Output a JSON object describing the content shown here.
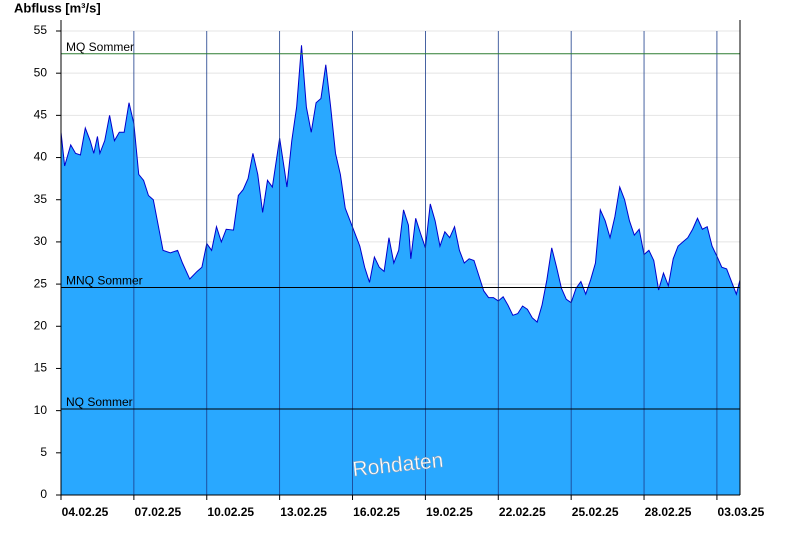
{
  "chart_data": {
    "type": "area",
    "y_label": "Abfluss [m³/s]",
    "watermark": "Rohdaten",
    "xlim": [
      0,
      27.95
    ],
    "xticks": [
      {
        "value": 0,
        "label": "04.02.25"
      },
      {
        "value": 3,
        "label": "07.02.25"
      },
      {
        "value": 6,
        "label": "10.02.25"
      },
      {
        "value": 9,
        "label": "13.02.25"
      },
      {
        "value": 12,
        "label": "16.02.25"
      },
      {
        "value": 15,
        "label": "19.02.25"
      },
      {
        "value": 18,
        "label": "22.02.25"
      },
      {
        "value": 21,
        "label": "25.02.25"
      },
      {
        "value": 24,
        "label": "28.02.25"
      },
      {
        "value": 27,
        "label": "03.03.25"
      }
    ],
    "ylim": [
      0,
      55
    ],
    "yticks": [
      0,
      5,
      10,
      15,
      20,
      25,
      30,
      35,
      40,
      45,
      50,
      55
    ],
    "grid": true,
    "reference_lines": [
      {
        "name": "MQ Sommer",
        "value": 52.3,
        "color": "#2e7d32"
      },
      {
        "name": "MNQ Sommer",
        "value": 24.6,
        "color": "#000000"
      },
      {
        "name": "NQ Sommer",
        "value": 10.2,
        "color": "#000000"
      }
    ],
    "series": [
      {
        "color": "#29a8ff",
        "line_color": "#0000cc",
        "x": [
          0,
          0.15,
          0.4,
          0.6,
          0.8,
          1.0,
          1.2,
          1.35,
          1.5,
          1.6,
          1.8,
          2.0,
          2.2,
          2.4,
          2.6,
          2.8,
          3.0,
          3.2,
          3.4,
          3.6,
          3.8,
          4.0,
          4.2,
          4.5,
          4.8,
          5.0,
          5.3,
          5.6,
          5.8,
          6.0,
          6.2,
          6.4,
          6.6,
          6.8,
          7.1,
          7.3,
          7.5,
          7.7,
          7.9,
          8.1,
          8.3,
          8.5,
          8.7,
          9.0,
          9.2,
          9.3,
          9.5,
          9.7,
          9.9,
          10.1,
          10.3,
          10.5,
          10.7,
          10.9,
          11.1,
          11.3,
          11.5,
          11.7,
          11.9,
          12.1,
          12.3,
          12.5,
          12.7,
          12.9,
          13.1,
          13.3,
          13.5,
          13.7,
          13.9,
          14.1,
          14.3,
          14.4,
          14.6,
          14.8,
          15.0,
          15.2,
          15.4,
          15.6,
          15.8,
          16.0,
          16.2,
          16.4,
          16.6,
          16.8,
          17.0,
          17.2,
          17.4,
          17.6,
          17.8,
          18.0,
          18.2,
          18.4,
          18.6,
          18.8,
          19.0,
          19.2,
          19.4,
          19.6,
          19.8,
          20.0,
          20.2,
          20.4,
          20.6,
          20.8,
          21.0,
          21.2,
          21.4,
          21.6,
          21.8,
          22.0,
          22.2,
          22.4,
          22.6,
          22.8,
          23.0,
          23.2,
          23.4,
          23.6,
          23.8,
          24.0,
          24.2,
          24.4,
          24.6,
          24.8,
          25.0,
          25.2,
          25.4,
          25.6,
          25.8,
          26.0,
          26.2,
          26.4,
          26.6,
          26.8,
          27.0,
          27.2,
          27.4,
          27.6,
          27.8,
          27.95
        ],
        "values": [
          43,
          39,
          41.5,
          40.5,
          40.3,
          43.5,
          42,
          40.5,
          42.5,
          40.5,
          42,
          45,
          42,
          43,
          43,
          46.5,
          44,
          38,
          37.3,
          35.5,
          35,
          32,
          29,
          28.7,
          29,
          27.5,
          25.6,
          26.5,
          27,
          29.8,
          29,
          31.8,
          30,
          31.5,
          31.4,
          35.5,
          36.2,
          37.5,
          40.5,
          38,
          33.5,
          37.3,
          36.5,
          42.3,
          38.5,
          36.5,
          42,
          46,
          53.3,
          46,
          43,
          46.5,
          47,
          51,
          46,
          40.5,
          38,
          34,
          32.5,
          31,
          29.5,
          27,
          25.2,
          28.2,
          27,
          26.5,
          30.5,
          27.5,
          29,
          33.8,
          32,
          28,
          32.8,
          31,
          29.3,
          34.5,
          32.5,
          29.5,
          31.2,
          30.5,
          31.8,
          29,
          27.5,
          28,
          27.8,
          26,
          24.2,
          23.4,
          23.4,
          23,
          23.5,
          22.5,
          21.3,
          21.5,
          22.4,
          22,
          21,
          20.5,
          22.5,
          25.5,
          29.3,
          27,
          24.5,
          23.2,
          22.8,
          24.5,
          25.3,
          23.8,
          25.5,
          27.5,
          33.8,
          32.5,
          30.5,
          33,
          36.5,
          35,
          32.5,
          30.8,
          31.5,
          28.5,
          29,
          27.8,
          24.3,
          26.3,
          24.8,
          28,
          29.5,
          30,
          30.5,
          31.5,
          32.8,
          31.5,
          31.8,
          29.5,
          28.3,
          27,
          26.8,
          25.3,
          23.8,
          25.5
        ]
      }
    ]
  }
}
